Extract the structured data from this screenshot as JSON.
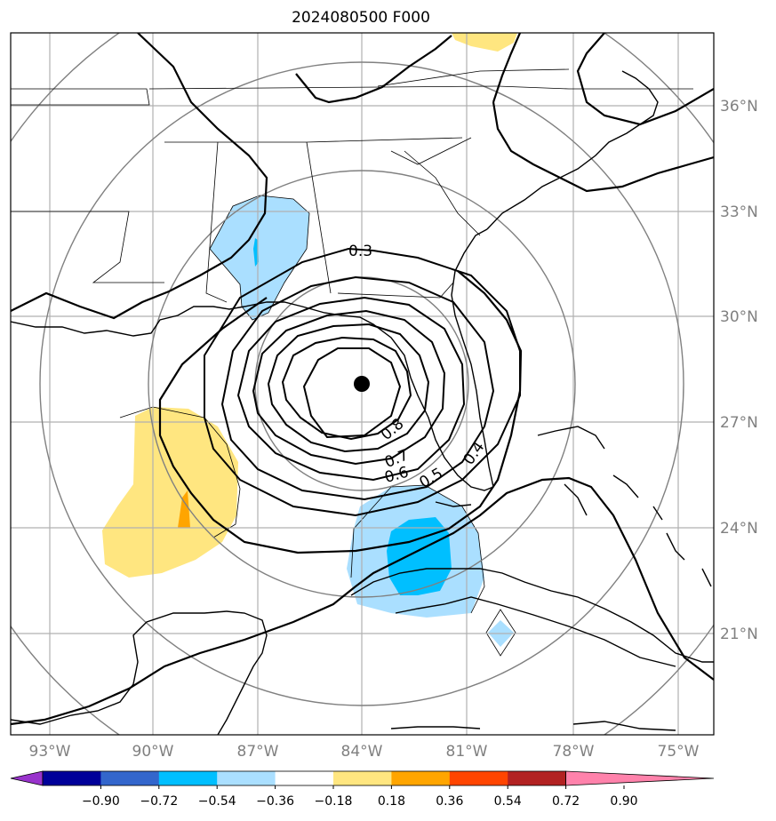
{
  "title": "2024080500 F000",
  "lon_labels": [
    "93°W",
    "90°W",
    "87°W",
    "84°W",
    "81°W",
    "78°W",
    "75°W"
  ],
  "lat_labels": [
    "36°N",
    "33°N",
    "30°N",
    "27°N",
    "24°N",
    "21°N"
  ],
  "contour_labels": [
    "0.3",
    "0.8",
    "0.7",
    "0.6",
    "0.5",
    "0.4"
  ],
  "colorbar": {
    "tick_labels": [
      "−0.90",
      "−0.72",
      "−0.54",
      "−0.36",
      "−0.18",
      "0.18",
      "0.36",
      "0.54",
      "0.72",
      "0.90"
    ],
    "colors": [
      "#9933cc",
      "#000099",
      "#3366cc",
      "#00bfff",
      "#aadfff",
      "#ffffff",
      "#ffe680",
      "#ffa500",
      "#ff4500",
      "#b22222",
      "#ff82ab"
    ]
  },
  "center_marker": {
    "lon": -84.0,
    "lat": 28.1
  }
}
